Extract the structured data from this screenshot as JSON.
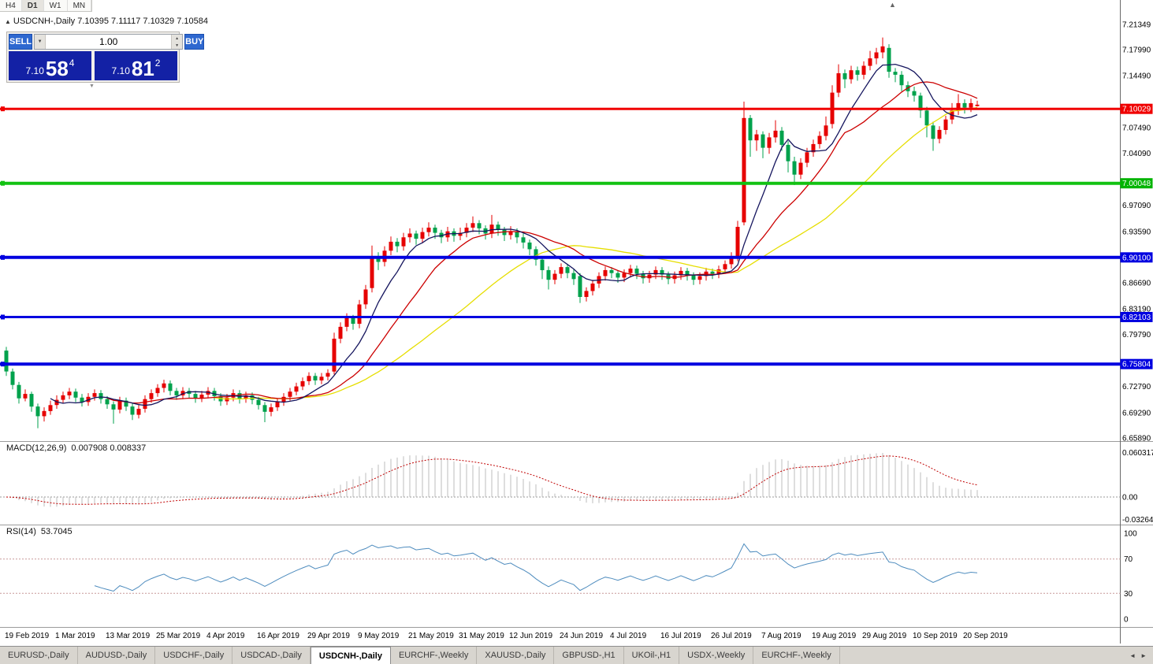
{
  "window": {
    "timeframes": [
      "H4",
      "D1",
      "W1",
      "MN"
    ],
    "active_timeframe": "D1",
    "collapse_icon": "▲",
    "scroll_end_icon": "▲",
    "ohlc_line": "USDCNH-,Daily 7.10395 7.11117 7.10329 7.10584"
  },
  "trade_widget": {
    "sell_label": "SELL",
    "buy_label": "BUY",
    "volume": "1.00",
    "dropdown_icon": "▼",
    "spin_up_icon": "▲",
    "spin_down_icon": "▼",
    "widget_collapse_icon": "▼",
    "sell_price_prefix": "7.10",
    "sell_price_big": "58",
    "sell_price_sup": "4",
    "buy_price_prefix": "7.10",
    "buy_price_big": "81",
    "buy_price_sup": "2"
  },
  "price_axis": {
    "grid_labels": [
      {
        "p": 7.21349,
        "t": "7.21349"
      },
      {
        "p": 7.1799,
        "t": "7.17990"
      },
      {
        "p": 7.1449,
        "t": "7.14490"
      },
      {
        "p": 7.0749,
        "t": "7.07490"
      },
      {
        "p": 7.0409,
        "t": "7.04090"
      },
      {
        "p": 6.9709,
        "t": "6.97090"
      },
      {
        "p": 6.9359,
        "t": "6.93590"
      },
      {
        "p": 6.8669,
        "t": "6.86690"
      },
      {
        "p": 6.8319,
        "t": "6.83190"
      },
      {
        "p": 6.7979,
        "t": "6.79790"
      },
      {
        "p": 6.7279,
        "t": "6.72790"
      },
      {
        "p": 6.6929,
        "t": "6.69290"
      },
      {
        "p": 6.6589,
        "t": "6.65890"
      }
    ],
    "badges": [
      {
        "p": 7.10029,
        "t": "7.10029",
        "color": "#f00000"
      },
      {
        "p": 7.00048,
        "t": "7.00048",
        "color": "#00b400"
      },
      {
        "p": 6.901,
        "t": "6.90100",
        "color": "#0000e0"
      },
      {
        "p": 6.82103,
        "t": "6.82103",
        "color": "#0000e0"
      },
      {
        "p": 6.75804,
        "t": "6.75804",
        "color": "#0000e0"
      }
    ]
  },
  "chart_data": {
    "type": "candlestick",
    "symbol": "USDCNH",
    "timeframe": "Daily",
    "last_ohlc": {
      "open": 7.10395,
      "high": 7.11117,
      "low": 7.10329,
      "close": 7.10584
    },
    "y_range": [
      6.6589,
      7.2135
    ],
    "up_color": "#e60000",
    "down_color": "#00a24c",
    "hlines": [
      {
        "price": 7.10029,
        "color": "#f00000",
        "width": 3
      },
      {
        "price": 7.00048,
        "color": "#12c212",
        "width": 4
      },
      {
        "price": 6.901,
        "color": "#0000e0",
        "width": 4
      },
      {
        "price": 6.82103,
        "color": "#0000e0",
        "width": 3
      },
      {
        "price": 6.75804,
        "color": "#0000e0",
        "width": 4
      }
    ],
    "moving_averages": [
      {
        "period": 34,
        "color": "#e6de00"
      },
      {
        "period": 17,
        "color": "#cc0000"
      },
      {
        "period": 8,
        "color": "#15155e"
      }
    ],
    "macd": {
      "label": "MACD(12,26,9)",
      "current": "0.007908 0.008337",
      "fast": 12,
      "slow": 26,
      "signal": 9,
      "axis_labels": [
        "0.060317",
        "0.00",
        "-0.032648"
      ],
      "hist_color": "#bcbcbc",
      "signal_color": "#c00000"
    },
    "rsi": {
      "label": "RSI(14)",
      "current": "53.7045",
      "period": 14,
      "levels": [
        70,
        30
      ],
      "axis_labels": [
        "100",
        "70",
        "30",
        "0"
      ],
      "line_color": "#4e8cbe"
    },
    "x_labels": [
      {
        "i": 0,
        "t": "19 Feb 2019"
      },
      {
        "i": 8,
        "t": "1 Mar 2019"
      },
      {
        "i": 16,
        "t": "13 Mar 2019"
      },
      {
        "i": 24,
        "t": "25 Mar 2019"
      },
      {
        "i": 32,
        "t": "4 Apr 2019"
      },
      {
        "i": 40,
        "t": "16 Apr 2019"
      },
      {
        "i": 48,
        "t": "29 Apr 2019"
      },
      {
        "i": 56,
        "t": "9 May 2019"
      },
      {
        "i": 64,
        "t": "21 May 2019"
      },
      {
        "i": 72,
        "t": "31 May 2019"
      },
      {
        "i": 80,
        "t": "12 Jun 2019"
      },
      {
        "i": 88,
        "t": "24 Jun 2019"
      },
      {
        "i": 96,
        "t": "4 Jul 2019"
      },
      {
        "i": 104,
        "t": "16 Jul 2019"
      },
      {
        "i": 112,
        "t": "26 Jul 2019"
      },
      {
        "i": 120,
        "t": "7 Aug 2019"
      },
      {
        "i": 128,
        "t": "19 Aug 2019"
      },
      {
        "i": 136,
        "t": "29 Aug 2019"
      },
      {
        "i": 144,
        "t": "10 Sep 2019"
      },
      {
        "i": 152,
        "t": "20 Sep 2019"
      }
    ],
    "candles": [
      [
        6.776,
        6.781,
        6.742,
        6.748
      ],
      [
        6.748,
        6.752,
        6.724,
        6.73
      ],
      [
        6.73,
        6.734,
        6.705,
        6.712
      ],
      [
        6.712,
        6.724,
        6.708,
        6.718
      ],
      [
        6.718,
        6.721,
        6.694,
        6.701
      ],
      [
        6.701,
        6.705,
        6.672,
        6.688
      ],
      [
        6.688,
        6.7,
        6.681,
        6.695
      ],
      [
        6.695,
        6.709,
        6.69,
        6.703
      ],
      [
        6.703,
        6.716,
        6.698,
        6.71
      ],
      [
        6.71,
        6.721,
        6.705,
        6.716
      ],
      [
        6.716,
        6.726,
        6.711,
        6.721
      ],
      [
        6.721,
        6.725,
        6.707,
        6.713
      ],
      [
        6.713,
        6.718,
        6.701,
        6.707
      ],
      [
        6.707,
        6.719,
        6.702,
        6.714
      ],
      [
        6.714,
        6.724,
        6.709,
        6.719
      ],
      [
        6.719,
        6.723,
        6.705,
        6.711
      ],
      [
        6.711,
        6.715,
        6.698,
        6.704
      ],
      [
        6.704,
        6.708,
        6.678,
        6.697
      ],
      [
        6.697,
        6.714,
        6.692,
        6.709
      ],
      [
        6.709,
        6.713,
        6.695,
        6.701
      ],
      [
        6.701,
        6.705,
        6.683,
        6.69
      ],
      [
        6.69,
        6.703,
        6.685,
        6.698
      ],
      [
        6.698,
        6.716,
        6.693,
        6.711
      ],
      [
        6.711,
        6.724,
        6.706,
        6.719
      ],
      [
        6.719,
        6.731,
        6.714,
        6.726
      ],
      [
        6.726,
        6.737,
        6.72,
        6.732
      ],
      [
        6.732,
        6.736,
        6.716,
        6.722
      ],
      [
        6.722,
        6.726,
        6.71,
        6.716
      ],
      [
        6.716,
        6.727,
        6.711,
        6.722
      ],
      [
        6.722,
        6.726,
        6.712,
        6.718
      ],
      [
        6.718,
        6.722,
        6.706,
        6.712
      ],
      [
        6.712,
        6.722,
        6.707,
        6.717
      ],
      [
        6.717,
        6.727,
        6.712,
        6.722
      ],
      [
        6.722,
        6.726,
        6.709,
        6.715
      ],
      [
        6.715,
        6.719,
        6.702,
        6.708
      ],
      [
        6.708,
        6.718,
        6.703,
        6.713
      ],
      [
        6.713,
        6.724,
        6.708,
        6.719
      ],
      [
        6.719,
        6.723,
        6.705,
        6.711
      ],
      [
        6.711,
        6.721,
        6.706,
        6.716
      ],
      [
        6.716,
        6.72,
        6.704,
        6.71
      ],
      [
        6.71,
        6.714,
        6.697,
        6.703
      ],
      [
        6.703,
        6.707,
        6.68,
        6.694
      ],
      [
        6.694,
        6.705,
        6.688,
        6.7
      ],
      [
        6.7,
        6.712,
        6.695,
        6.707
      ],
      [
        6.707,
        6.719,
        6.702,
        6.714
      ],
      [
        6.714,
        6.726,
        6.709,
        6.721
      ],
      [
        6.721,
        6.733,
        6.716,
        6.728
      ],
      [
        6.728,
        6.74,
        6.723,
        6.735
      ],
      [
        6.735,
        6.747,
        6.73,
        6.742
      ],
      [
        6.742,
        6.746,
        6.73,
        6.736
      ],
      [
        6.736,
        6.746,
        6.731,
        6.741
      ],
      [
        6.741,
        6.751,
        6.736,
        6.746
      ],
      [
        6.748,
        6.8,
        6.744,
        6.792
      ],
      [
        6.792,
        6.814,
        6.786,
        6.808
      ],
      [
        6.808,
        6.826,
        6.802,
        6.82
      ],
      [
        6.82,
        6.824,
        6.804,
        6.812
      ],
      [
        6.812,
        6.844,
        6.806,
        6.838
      ],
      [
        6.838,
        6.864,
        6.832,
        6.858
      ],
      [
        6.86,
        6.917,
        6.854,
        6.902
      ],
      [
        6.902,
        6.908,
        6.884,
        6.895
      ],
      [
        6.895,
        6.916,
        6.889,
        6.91
      ],
      [
        6.91,
        6.929,
        6.904,
        6.922
      ],
      [
        6.922,
        6.927,
        6.908,
        6.916
      ],
      [
        6.916,
        6.934,
        6.91,
        6.928
      ],
      [
        6.928,
        6.94,
        6.921,
        6.933
      ],
      [
        6.933,
        6.937,
        6.918,
        6.926
      ],
      [
        6.926,
        6.941,
        6.92,
        6.935
      ],
      [
        6.935,
        6.948,
        6.929,
        6.941
      ],
      [
        6.941,
        6.945,
        6.926,
        6.934
      ],
      [
        6.934,
        6.938,
        6.92,
        6.928
      ],
      [
        6.928,
        6.942,
        6.922,
        6.936
      ],
      [
        6.936,
        6.94,
        6.922,
        6.93
      ],
      [
        6.93,
        6.941,
        6.924,
        6.934
      ],
      [
        6.934,
        6.947,
        6.928,
        6.941
      ],
      [
        6.941,
        6.956,
        6.935,
        6.947
      ],
      [
        6.947,
        6.951,
        6.932,
        6.94
      ],
      [
        6.94,
        6.944,
        6.925,
        6.933
      ],
      [
        6.933,
        6.958,
        6.927,
        6.945
      ],
      [
        6.945,
        6.949,
        6.93,
        6.938
      ],
      [
        6.938,
        6.942,
        6.923,
        6.931
      ],
      [
        6.931,
        6.943,
        6.925,
        6.936
      ],
      [
        6.936,
        6.94,
        6.92,
        6.928
      ],
      [
        6.928,
        6.933,
        6.913,
        6.921
      ],
      [
        6.921,
        6.925,
        6.904,
        6.912
      ],
      [
        6.912,
        6.916,
        6.89,
        6.898
      ],
      [
        6.898,
        6.902,
        6.872,
        6.884
      ],
      [
        6.884,
        6.889,
        6.858,
        6.871
      ],
      [
        6.871,
        6.884,
        6.865,
        6.879
      ],
      [
        6.879,
        6.893,
        6.873,
        6.888
      ],
      [
        6.888,
        6.892,
        6.873,
        6.88
      ],
      [
        6.88,
        6.885,
        6.864,
        6.872
      ],
      [
        6.876,
        6.88,
        6.84,
        6.848
      ],
      [
        6.848,
        6.861,
        6.842,
        6.856
      ],
      [
        6.856,
        6.871,
        6.85,
        6.866
      ],
      [
        6.866,
        6.881,
        6.86,
        6.876
      ],
      [
        6.876,
        6.889,
        6.87,
        6.884
      ],
      [
        6.884,
        6.888,
        6.873,
        6.88
      ],
      [
        6.88,
        6.884,
        6.867,
        6.874
      ],
      [
        6.874,
        6.885,
        6.868,
        6.88
      ],
      [
        6.88,
        6.891,
        6.874,
        6.886
      ],
      [
        6.886,
        6.89,
        6.872,
        6.879
      ],
      [
        6.879,
        6.883,
        6.866,
        6.873
      ],
      [
        6.873,
        6.883,
        6.867,
        6.878
      ],
      [
        6.878,
        6.889,
        6.872,
        6.884
      ],
      [
        6.884,
        6.888,
        6.871,
        6.878
      ],
      [
        6.878,
        6.882,
        6.865,
        6.872
      ],
      [
        6.872,
        6.882,
        6.866,
        6.877
      ],
      [
        6.877,
        6.888,
        6.871,
        6.883
      ],
      [
        6.883,
        6.887,
        6.87,
        6.877
      ],
      [
        6.877,
        6.881,
        6.864,
        6.871
      ],
      [
        6.871,
        6.881,
        6.865,
        6.876
      ],
      [
        6.876,
        6.887,
        6.87,
        6.882
      ],
      [
        6.882,
        6.886,
        6.872,
        6.879
      ],
      [
        6.879,
        6.89,
        6.873,
        6.885
      ],
      [
        6.885,
        6.897,
        6.879,
        6.892
      ],
      [
        6.892,
        6.908,
        6.886,
        6.9
      ],
      [
        6.902,
        6.95,
        6.896,
        6.942
      ],
      [
        6.948,
        7.11,
        6.944,
        7.088
      ],
      [
        7.088,
        7.092,
        7.036,
        7.058
      ],
      [
        7.058,
        7.072,
        7.044,
        7.066
      ],
      [
        7.066,
        7.07,
        7.034,
        7.048
      ],
      [
        7.048,
        7.068,
        7.04,
        7.062
      ],
      [
        7.062,
        7.085,
        7.055,
        7.071
      ],
      [
        7.071,
        7.076,
        7.044,
        7.052
      ],
      [
        7.052,
        7.057,
        7.015,
        7.03
      ],
      [
        7.03,
        7.036,
        6.998,
        7.012
      ],
      [
        7.012,
        7.034,
        7.006,
        7.028
      ],
      [
        7.028,
        7.048,
        7.022,
        7.042
      ],
      [
        7.042,
        7.059,
        7.036,
        7.053
      ],
      [
        7.053,
        7.07,
        7.047,
        7.064
      ],
      [
        7.064,
        7.09,
        7.058,
        7.078
      ],
      [
        7.08,
        7.132,
        7.074,
        7.122
      ],
      [
        7.122,
        7.16,
        7.116,
        7.148
      ],
      [
        7.148,
        7.153,
        7.128,
        7.14
      ],
      [
        7.14,
        7.158,
        7.134,
        7.152
      ],
      [
        7.152,
        7.157,
        7.138,
        7.146
      ],
      [
        7.146,
        7.164,
        7.14,
        7.158
      ],
      [
        7.158,
        7.178,
        7.152,
        7.168
      ],
      [
        7.168,
        7.182,
        7.16,
        7.176
      ],
      [
        7.176,
        7.196,
        7.168,
        7.184
      ],
      [
        7.182,
        7.187,
        7.142,
        7.15
      ],
      [
        7.15,
        7.155,
        7.136,
        7.146
      ],
      [
        7.146,
        7.151,
        7.124,
        7.132
      ],
      [
        7.132,
        7.137,
        7.116,
        7.124
      ],
      [
        7.124,
        7.13,
        7.11,
        7.118
      ],
      [
        7.118,
        7.122,
        7.088,
        7.098
      ],
      [
        7.098,
        7.103,
        7.062,
        7.078
      ],
      [
        7.078,
        7.083,
        7.044,
        7.06
      ],
      [
        7.06,
        7.077,
        7.054,
        7.072
      ],
      [
        7.072,
        7.091,
        7.066,
        7.086
      ],
      [
        7.086,
        7.108,
        7.08,
        7.098
      ],
      [
        7.098,
        7.12,
        7.092,
        7.108
      ],
      [
        7.108,
        7.113,
        7.094,
        7.102
      ],
      [
        7.102,
        7.114,
        7.096,
        7.108
      ],
      [
        7.10395,
        7.11117,
        7.10329,
        7.10584
      ]
    ]
  },
  "tab_bar": {
    "scroll_left_icon": "◄",
    "scroll_right_icon": "►",
    "tabs": [
      {
        "label": "EURUSD-,Daily",
        "active": false
      },
      {
        "label": "AUDUSD-,Daily",
        "active": false
      },
      {
        "label": "USDCHF-,Daily",
        "active": false
      },
      {
        "label": "USDCAD-,Daily",
        "active": false
      },
      {
        "label": "USDCNH-,Daily",
        "active": true
      },
      {
        "label": "EURCHF-,Weekly",
        "active": false
      },
      {
        "label": "XAUUSD-,Daily",
        "active": false
      },
      {
        "label": "GBPUSD-,H1",
        "active": false
      },
      {
        "label": "UKOil-,H1",
        "active": false
      },
      {
        "label": "USDX-,Weekly",
        "active": false
      },
      {
        "label": "EURCHF-,Weekly",
        "active": false
      }
    ]
  }
}
